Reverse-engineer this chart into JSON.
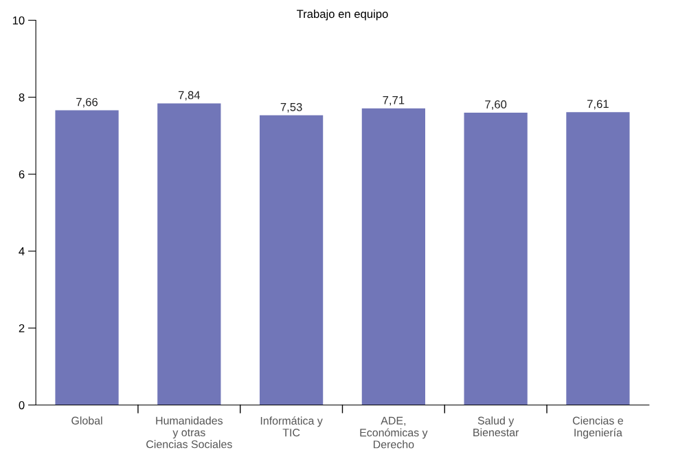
{
  "chart_data": {
    "type": "bar",
    "title": "Trabajo en equipo",
    "categories": [
      "Global",
      "Humanidades\ny otras\nCiencias Sociales",
      "Informática y\nTIC",
      "ADE,\nEconómicas y\nDerecho",
      "Salud y\nBienestar",
      "Ciencias e\nIngeniería"
    ],
    "values": [
      7.66,
      7.84,
      7.53,
      7.71,
      7.6,
      7.61
    ],
    "value_labels": [
      "7,66",
      "7,84",
      "7,53",
      "7,71",
      "7,60",
      "7,61"
    ],
    "color": "#7176b8",
    "ylim": [
      0,
      10
    ],
    "yticks": [
      0,
      2,
      4,
      6,
      8,
      10
    ],
    "grid": false,
    "legend": false
  }
}
